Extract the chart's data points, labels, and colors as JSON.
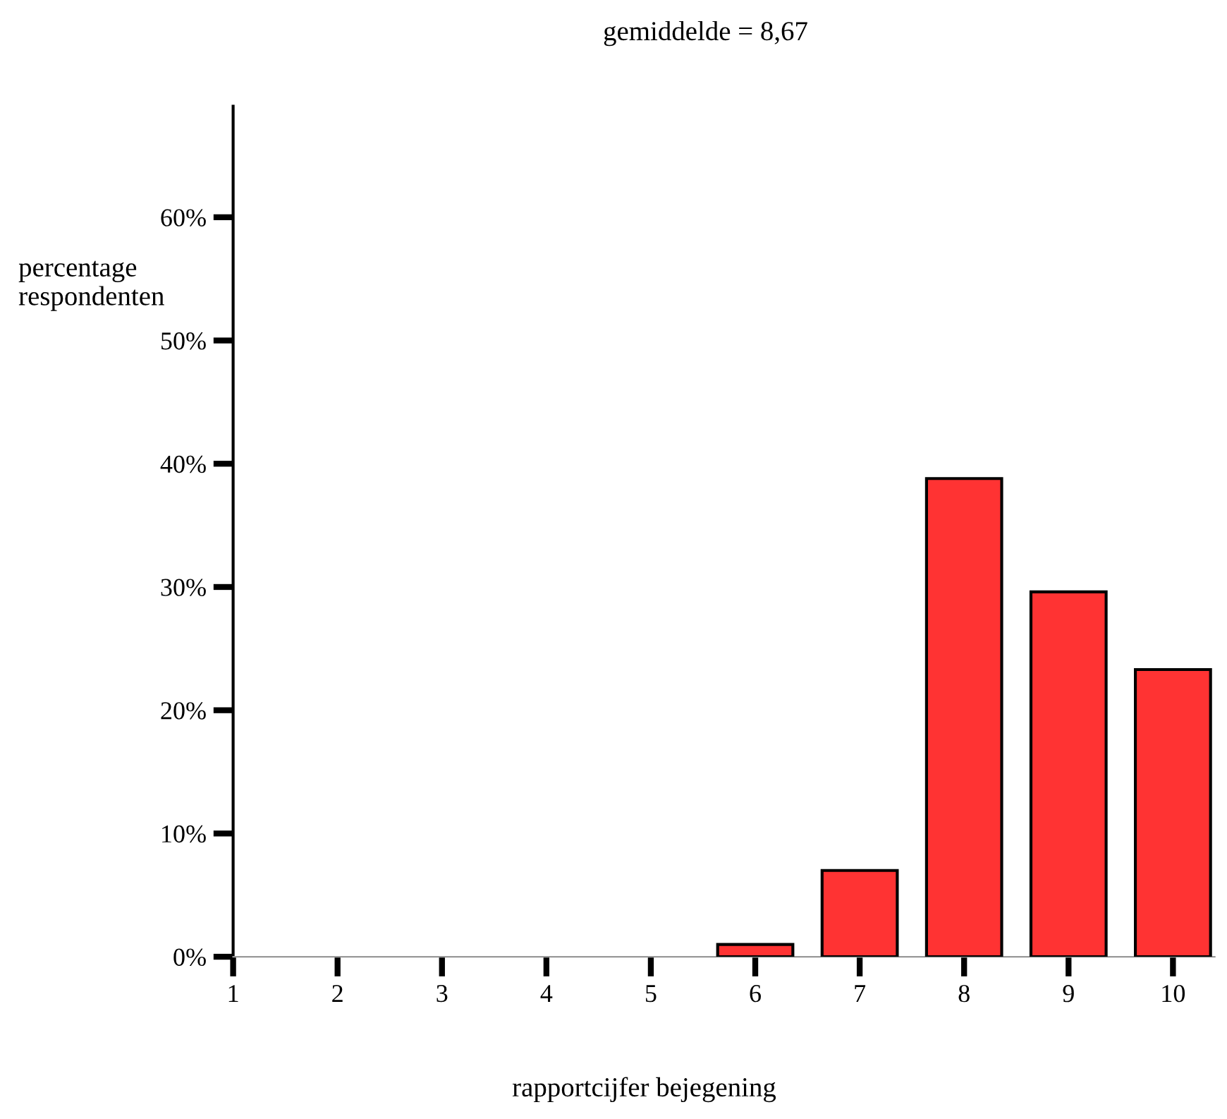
{
  "chart_data": {
    "type": "bar",
    "title": "gemiddelde = 8,67",
    "xlabel": "rapportcijfer bejegening",
    "ylabel": "percentage\nrespondenten",
    "x": [
      6,
      7,
      8,
      9,
      10
    ],
    "values": [
      1.0,
      7.0,
      38.8,
      29.6,
      23.3
    ],
    "color": "#ff3333",
    "xlim": [
      1,
      10.4
    ],
    "xticks": [
      1,
      2,
      3,
      4,
      5,
      6,
      7,
      8,
      9,
      10
    ],
    "ylim": [
      0,
      69
    ],
    "yticks": [
      {
        "value": 0,
        "label": "0%"
      },
      {
        "value": 10,
        "label": "10%"
      },
      {
        "value": 20,
        "label": "20%"
      },
      {
        "value": 30,
        "label": "30%"
      },
      {
        "value": 40,
        "label": "40%"
      },
      {
        "value": 50,
        "label": "50%"
      },
      {
        "value": 60,
        "label": "60%"
      }
    ],
    "grid": false,
    "legend": false
  }
}
